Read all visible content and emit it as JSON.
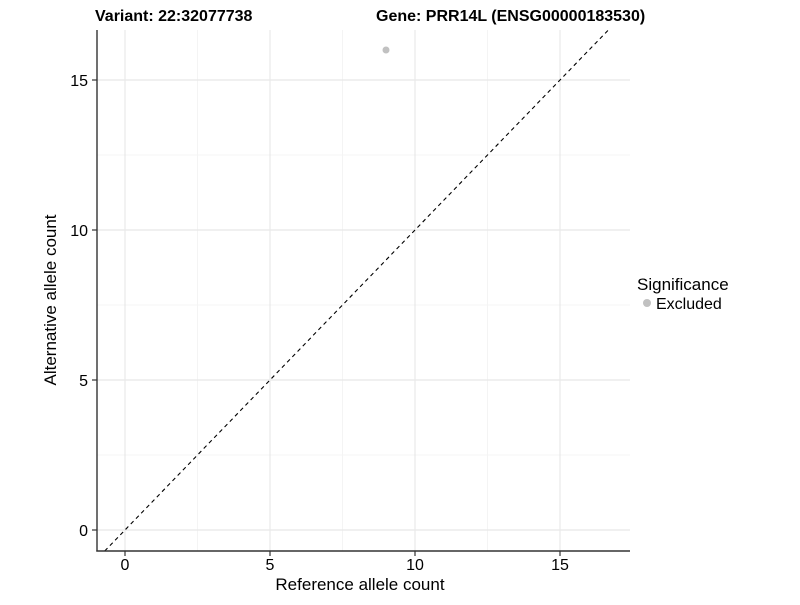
{
  "chart_data": {
    "type": "scatter",
    "title_left": "Variant: 22:32077738",
    "title_right": "Gene: PRR14L (ENSG00000183530)",
    "xlabel": "Reference allele count",
    "ylabel": "Alternative allele count",
    "x_ticks": [
      0,
      5,
      10,
      15
    ],
    "y_ticks": [
      0,
      5,
      10,
      15
    ],
    "xlim": [
      -0.97,
      17.4
    ],
    "ylim": [
      -0.7,
      16.7
    ],
    "grid": true,
    "background": "#ffffff",
    "identity_line": {
      "slope": 1,
      "intercept": 0,
      "style": "dashed",
      "color": "#000000"
    },
    "points": [
      {
        "x": 9,
        "y": 16,
        "significance": "Excluded"
      }
    ],
    "point_color": "#c1c1c1",
    "point_radius": 3.5,
    "colors": {
      "grid_major": "#e8e8e8",
      "grid_minor": "#f4f4f4",
      "axis_line": "#333333",
      "tick_mark": "#333333"
    },
    "legend": {
      "title": "Significance",
      "position": "right",
      "items": [
        {
          "label": "Excluded",
          "color": "#c1c1c1",
          "marker": "circle"
        }
      ]
    }
  }
}
